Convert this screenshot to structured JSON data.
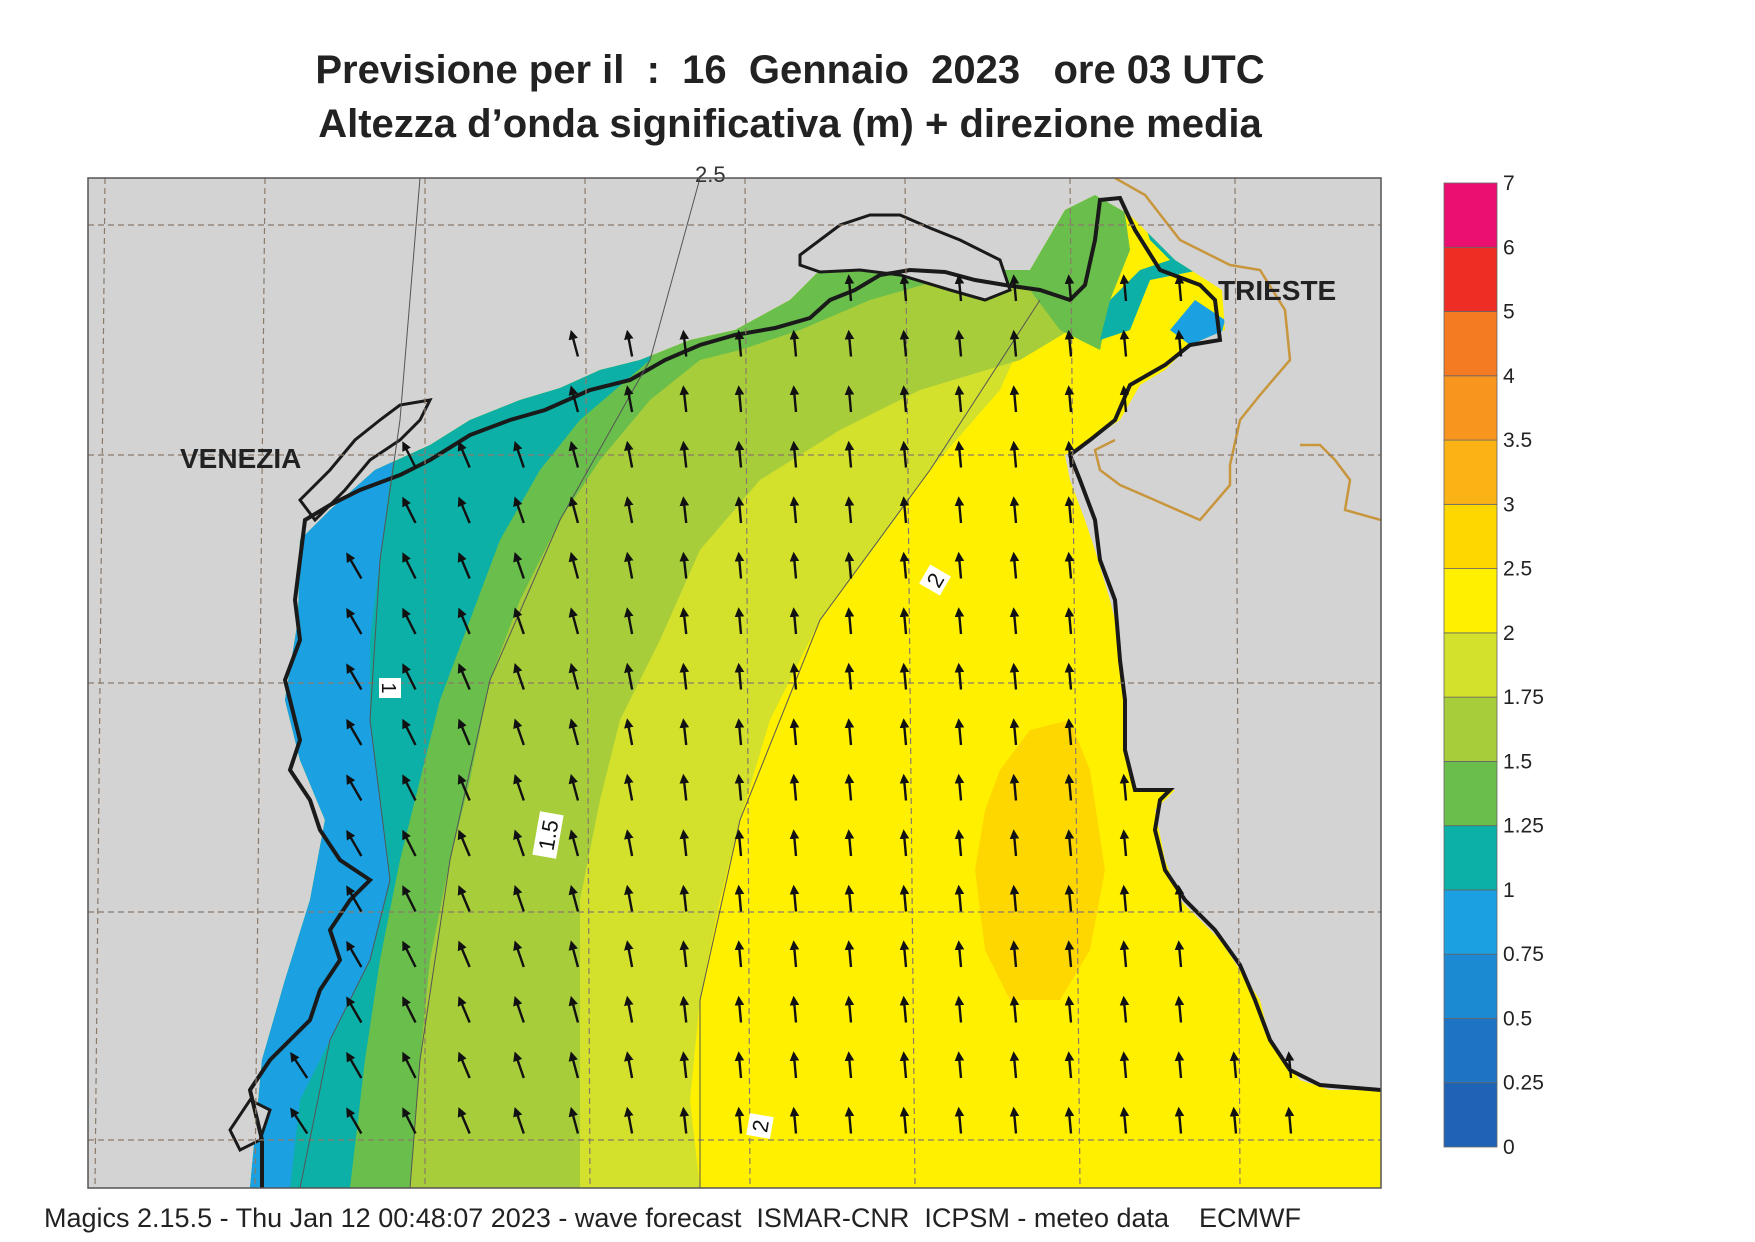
{
  "title": {
    "line1": "Previsione per il  :  16  Gennaio  2023   ore 03 UTC",
    "line2": "Altezza d’onda significativa (m) + direzione media"
  },
  "map": {
    "city_labels": [
      {
        "name": "VENEZIA"
      },
      {
        "name": "TRIESTE"
      }
    ],
    "contour_labels": [
      "1",
      "1.5",
      "2",
      "2"
    ],
    "partial_top_label": "2.5",
    "arrow_direction": "north / north-west",
    "colors": {
      "land": "#d3d3d4",
      "coast": "#1a1a1a",
      "border": "#c8963c",
      "arrow": "#111111"
    }
  },
  "colorbar": {
    "unit": "m",
    "ticks": [
      "0",
      "0.25",
      "0.5",
      "0.75",
      "1",
      "1.25",
      "1.5",
      "1.75",
      "2",
      "2.5",
      "3",
      "3.5",
      "4",
      "5",
      "6",
      "7"
    ],
    "colors": [
      "#1f63b6",
      "#1d74c4",
      "#1b8ad3",
      "#1ba0e2",
      "#0db0a6",
      "#6abe4c",
      "#a8cd3a",
      "#d4e12c",
      "#fff000",
      "#ffd700",
      "#fbb215",
      "#f8951e",
      "#f47b22",
      "#ee2d24",
      "#ea0f70"
    ]
  },
  "footer": "Magics 2.15.5 - Thu Jan 12 00:48:07 2023 - wave forecast  ISMAR-CNR  ICPSM - meteo data    ECMWF"
}
